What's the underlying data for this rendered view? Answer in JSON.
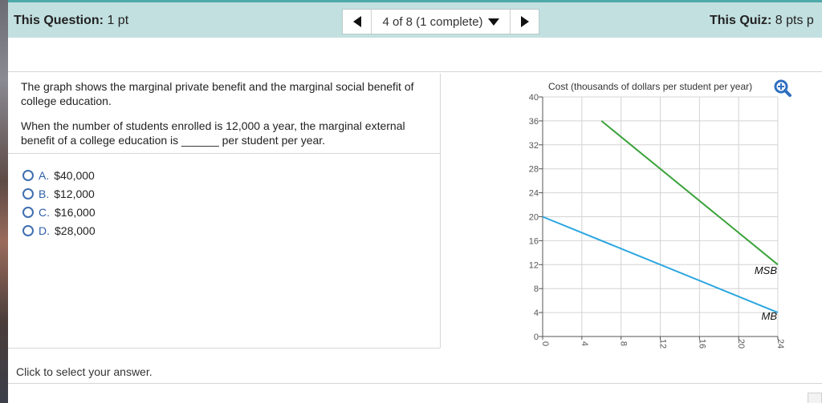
{
  "header": {
    "question_label": "This Question:",
    "question_value": "1 pt",
    "nav_text": "4 of 8 (1 complete)",
    "quiz_label": "This Quiz:",
    "quiz_value": "8 pts p"
  },
  "question": {
    "text1": "The graph shows the marginal private benefit and the marginal social benefit of college education.",
    "text2": "When the number of students enrolled is 12,000 a year, the marginal external benefit of a college education is ______ per student per year."
  },
  "choices": [
    {
      "letter": "A.",
      "text": "$40,000"
    },
    {
      "letter": "B.",
      "text": "$12,000"
    },
    {
      "letter": "C.",
      "text": "$16,000"
    },
    {
      "letter": "D.",
      "text": "$28,000"
    }
  ],
  "footer": {
    "hint": "Click to select your answer."
  },
  "icons": {
    "zoom": "zoom-in-icon",
    "prev": "triangle-left-icon",
    "next": "triangle-right-icon",
    "dropdown": "triangle-down-icon"
  },
  "colors": {
    "msb": "#3aa23a",
    "mb": "#2aa6e0",
    "header_bg": "#c3e0e0",
    "accent": "#3f6fb0"
  },
  "chart_data": {
    "type": "line",
    "title": "",
    "ylabel": "Cost (thousands of dollars per student per year)",
    "xlabel": "",
    "xlim": [
      0,
      24
    ],
    "ylim": [
      0,
      40
    ],
    "x_ticks": [
      0,
      4,
      8,
      12,
      16,
      20,
      24
    ],
    "y_ticks": [
      0,
      4,
      8,
      12,
      16,
      20,
      24,
      28,
      32,
      36,
      40
    ],
    "grid": true,
    "series": [
      {
        "name": "MSB",
        "color": "#3aa23a",
        "points": [
          [
            6,
            36
          ],
          [
            24,
            12
          ]
        ]
      },
      {
        "name": "MB",
        "color": "#2aa6e0",
        "points": [
          [
            0,
            20
          ],
          [
            24,
            4
          ]
        ]
      }
    ]
  }
}
